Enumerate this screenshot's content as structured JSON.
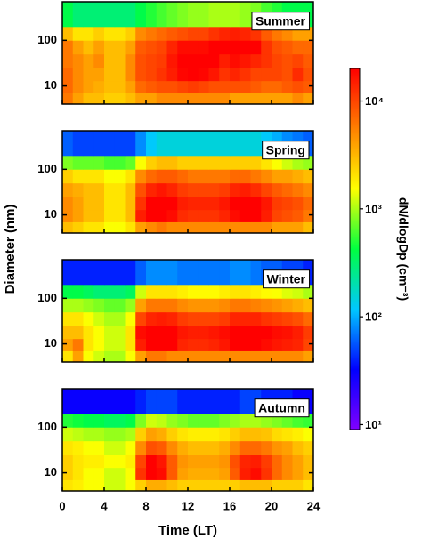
{
  "chart_data": {
    "type": "heatmap",
    "xlabel": "Time (LT)",
    "ylabel": "Diameter (nm)",
    "x_bins": [
      0,
      1,
      2,
      3,
      4,
      5,
      6,
      7,
      8,
      9,
      10,
      11,
      12,
      13,
      14,
      15,
      16,
      17,
      18,
      19,
      20,
      21,
      22,
      23,
      24
    ],
    "y_bins": [
      4,
      7,
      13,
      25,
      50,
      100,
      200,
      700
    ],
    "xlim": [
      0,
      24
    ],
    "xticks": [
      0,
      4,
      8,
      12,
      16,
      20,
      24
    ],
    "ylim": [
      4,
      700
    ],
    "yticks": [
      10,
      100
    ],
    "ylog": true,
    "colorbar": {
      "label": "dN/dlogDp (cm⁻³)",
      "lim": [
        9,
        20000
      ],
      "log": true,
      "ticks": [
        {
          "value": 10,
          "label": "10¹"
        },
        {
          "value": 100,
          "label": "10²"
        },
        {
          "value": 1000,
          "label": "10³"
        },
        {
          "value": 10000,
          "label": "10⁴"
        }
      ],
      "colors": [
        "#8000ff",
        "#0000ff",
        "#00c8ff",
        "#00ff40",
        "#ffff00",
        "#ff8000",
        "#ff0000"
      ]
    },
    "panels": [
      {
        "label": "Summer",
        "values": [
          [
            6000,
            4000,
            3000,
            3000,
            2500,
            2500,
            3000,
            4000,
            4000,
            5000,
            5000,
            5000,
            5000,
            5000,
            5000,
            5000,
            4000,
            4000,
            4000,
            4000,
            4000,
            4000,
            5000,
            4000
          ],
          [
            7000,
            5000,
            4000,
            3500,
            3000,
            3000,
            4000,
            7000,
            8000,
            9000,
            9000,
            10000,
            11000,
            10000,
            9000,
            9000,
            9000,
            9000,
            8000,
            7000,
            7000,
            8000,
            9000,
            8000
          ],
          [
            7000,
            5000,
            4000,
            4000,
            3000,
            3000,
            5000,
            9000,
            10000,
            12000,
            15000,
            19000,
            20000,
            19000,
            16000,
            12000,
            14000,
            12000,
            10000,
            10000,
            10000,
            9000,
            13000,
            9000
          ],
          [
            6000,
            5000,
            4000,
            5000,
            3000,
            3000,
            5000,
            9000,
            10000,
            11000,
            16000,
            20000,
            20000,
            20000,
            20000,
            15000,
            18000,
            16000,
            14000,
            12000,
            10000,
            9000,
            10000,
            8000
          ],
          [
            6000,
            4000,
            3000,
            4000,
            3000,
            3000,
            4000,
            8000,
            9000,
            10000,
            14000,
            18000,
            18000,
            18000,
            20000,
            20000,
            20000,
            20000,
            20000,
            12000,
            9000,
            8000,
            7000,
            7000
          ],
          [
            3000,
            2000,
            2000,
            2500,
            2000,
            2000,
            2500,
            5000,
            6000,
            7000,
            8000,
            9000,
            10000,
            10000,
            12000,
            14000,
            15000,
            14000,
            12000,
            8000,
            6000,
            5000,
            4000,
            4000
          ],
          [
            400,
            300,
            300,
            300,
            300,
            300,
            300,
            400,
            500,
            600,
            700,
            800,
            900,
            900,
            1000,
            1000,
            1000,
            900,
            800,
            600,
            500,
            400,
            400,
            400
          ]
        ]
      },
      {
        "label": "Spring",
        "values": [
          [
            3000,
            2500,
            2000,
            2000,
            1500,
            1500,
            2000,
            4000,
            5000,
            6000,
            5000,
            5000,
            5000,
            5000,
            5000,
            5000,
            5000,
            5000,
            5000,
            5000,
            4000,
            4000,
            4000,
            3000
          ],
          [
            5000,
            4000,
            3000,
            3000,
            2000,
            2000,
            3000,
            15000,
            20000,
            20000,
            18000,
            13000,
            12000,
            12000,
            12000,
            14000,
            18000,
            20000,
            20000,
            15000,
            10000,
            9000,
            8000,
            6000
          ],
          [
            5000,
            4000,
            3000,
            3000,
            2000,
            2000,
            3000,
            12000,
            20000,
            20000,
            20000,
            15000,
            14000,
            14000,
            14000,
            16000,
            20000,
            20000,
            20000,
            16000,
            11000,
            10000,
            9000,
            7000
          ],
          [
            4000,
            3500,
            3000,
            3000,
            2000,
            2000,
            3000,
            9000,
            14000,
            16000,
            14000,
            11000,
            10000,
            10000,
            10000,
            11000,
            14000,
            15000,
            13000,
            10000,
            8000,
            7000,
            6000,
            5000
          ],
          [
            2500,
            2000,
            2000,
            2000,
            1500,
            1500,
            2000,
            5000,
            7000,
            8000,
            8000,
            7000,
            6000,
            6000,
            6000,
            6000,
            7000,
            7000,
            6000,
            5000,
            4000,
            4000,
            3500,
            3000
          ],
          [
            800,
            700,
            700,
            700,
            600,
            600,
            700,
            1500,
            2500,
            3000,
            3000,
            2500,
            2500,
            2500,
            2500,
            2500,
            2500,
            2500,
            2500,
            2000,
            1500,
            1200,
            1000,
            900
          ],
          [
            60,
            50,
            50,
            50,
            50,
            50,
            50,
            80,
            120,
            150,
            150,
            150,
            150,
            150,
            150,
            150,
            150,
            150,
            150,
            120,
            100,
            80,
            70,
            60
          ]
        ]
      },
      {
        "label": "Winter",
        "values": [
          [
            2000,
            4000,
            1500,
            1200,
            1000,
            1000,
            1500,
            4000,
            6000,
            6000,
            5000,
            5000,
            5000,
            5000,
            5000,
            5000,
            5000,
            5000,
            5000,
            5000,
            5000,
            5000,
            5000,
            4000
          ],
          [
            4000,
            6000,
            2000,
            1500,
            1200,
            1200,
            2000,
            15000,
            20000,
            20000,
            20000,
            14000,
            13000,
            13000,
            14000,
            16000,
            20000,
            20000,
            20000,
            18000,
            16000,
            15000,
            14000,
            10000
          ],
          [
            3000,
            3000,
            2000,
            1500,
            1200,
            1200,
            2000,
            18000,
            20000,
            20000,
            20000,
            16000,
            15000,
            15000,
            16000,
            18000,
            20000,
            20000,
            20000,
            20000,
            18000,
            17000,
            15000,
            11000
          ],
          [
            2000,
            2000,
            1500,
            1200,
            1000,
            1000,
            1500,
            10000,
            14000,
            15000,
            14000,
            11000,
            10000,
            10000,
            10000,
            11000,
            14000,
            14000,
            14000,
            12000,
            11000,
            10000,
            9000,
            7000
          ],
          [
            1000,
            1000,
            900,
            800,
            700,
            700,
            900,
            4000,
            6000,
            6000,
            6000,
            5000,
            4500,
            4500,
            4500,
            5000,
            6000,
            6000,
            5500,
            5000,
            4500,
            4000,
            3500,
            3000
          ],
          [
            400,
            400,
            350,
            300,
            300,
            300,
            350,
            1200,
            2000,
            2000,
            2000,
            1800,
            1600,
            1600,
            1600,
            1800,
            2000,
            2000,
            1800,
            1600,
            1500,
            1300,
            1200,
            1000
          ],
          [
            40,
            40,
            40,
            40,
            40,
            40,
            40,
            60,
            80,
            80,
            80,
            70,
            70,
            70,
            70,
            70,
            80,
            80,
            70,
            60,
            60,
            50,
            50,
            40
          ]
        ]
      },
      {
        "label": "Autumn",
        "values": [
          [
            2000,
            1800,
            1500,
            1500,
            1200,
            1200,
            1500,
            2500,
            3500,
            3500,
            3000,
            2500,
            2500,
            2500,
            2500,
            2500,
            2500,
            3000,
            3000,
            3000,
            2500,
            2500,
            2500,
            2000
          ],
          [
            2500,
            2000,
            1500,
            1500,
            1200,
            1200,
            1500,
            12000,
            20000,
            18000,
            8000,
            4000,
            3500,
            3500,
            3500,
            4000,
            8000,
            15000,
            18000,
            12000,
            7000,
            5000,
            4000,
            3000
          ],
          [
            2500,
            2000,
            1800,
            1800,
            1500,
            1500,
            1800,
            10000,
            20000,
            16000,
            8000,
            4500,
            4000,
            4000,
            4000,
            4500,
            9000,
            14000,
            15000,
            11000,
            7000,
            5000,
            4000,
            3000
          ],
          [
            2000,
            1800,
            1500,
            1500,
            1200,
            1200,
            1500,
            5000,
            9000,
            8000,
            5000,
            3500,
            3000,
            3000,
            3000,
            3500,
            5000,
            7000,
            7000,
            6000,
            4500,
            4000,
            3000,
            2500
          ],
          [
            1200,
            1100,
            1000,
            1000,
            900,
            900,
            1000,
            2500,
            4000,
            3500,
            2500,
            2000,
            1800,
            1800,
            1800,
            2000,
            2500,
            3000,
            3000,
            2800,
            2200,
            2000,
            1800,
            1500
          ],
          [
            500,
            450,
            400,
            400,
            350,
            350,
            400,
            800,
            1200,
            1100,
            900,
            800,
            700,
            700,
            700,
            800,
            900,
            1000,
            1000,
            900,
            800,
            700,
            600,
            550
          ],
          [
            30,
            30,
            30,
            30,
            30,
            30,
            30,
            40,
            50,
            50,
            50,
            40,
            40,
            40,
            40,
            40,
            40,
            50,
            50,
            40,
            40,
            40,
            30,
            30
          ]
        ]
      }
    ]
  }
}
